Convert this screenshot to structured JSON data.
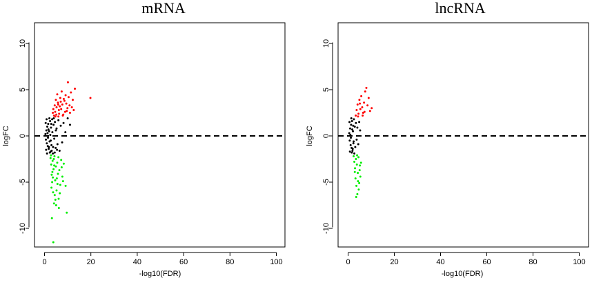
{
  "chart_data": [
    {
      "type": "scatter",
      "title": "mRNA",
      "xlabel": "-log10(FDR)",
      "ylabel": "logFC",
      "xlim": [
        0,
        100
      ],
      "ylim": [
        -12,
        12
      ],
      "xticks": [
        "0",
        "20",
        "40",
        "60",
        "80",
        "100"
      ],
      "yticks": [
        "-10",
        "-5",
        "0",
        "5",
        "10"
      ],
      "reference_line": {
        "y": 0,
        "style": "dashed"
      },
      "grid": false,
      "series": [
        {
          "color": "#ff0000",
          "points": [
            [
              4.1,
              2.2
            ],
            [
              4.6,
              2.6
            ],
            [
              5.2,
              3.1
            ],
            [
              5.8,
              3.6
            ],
            [
              6.3,
              2.4
            ],
            [
              6.8,
              4.1
            ],
            [
              7.2,
              2.9
            ],
            [
              7.7,
              3.4
            ],
            [
              8.1,
              2.3
            ],
            [
              8.6,
              3.8
            ],
            [
              9.1,
              4.4
            ],
            [
              9.6,
              2.7
            ],
            [
              10.1,
              5.8
            ],
            [
              10.8,
              3.3
            ],
            [
              11.4,
              4.7
            ],
            [
              12.2,
              3.9
            ],
            [
              13.1,
              5.1
            ],
            [
              4.4,
              3.3
            ],
            [
              5.5,
              4.5
            ],
            [
              6.0,
              2.1
            ],
            [
              7.4,
              4.8
            ],
            [
              8.9,
              2.6
            ],
            [
              9.9,
              3.0
            ],
            [
              11.0,
              2.5
            ],
            [
              3.8,
              2.9
            ],
            [
              4.9,
              3.9
            ],
            [
              6.6,
              3.2
            ],
            [
              7.9,
              2.2
            ],
            [
              12.6,
              2.8
            ],
            [
              19.8,
              4.1
            ],
            [
              5.1,
              2.3
            ],
            [
              6.2,
              2.8
            ],
            [
              7.0,
              3.7
            ],
            [
              8.3,
              4.0
            ],
            [
              9.4,
              3.5
            ],
            [
              10.4,
              4.2
            ],
            [
              3.6,
              2.5
            ],
            [
              4.7,
              2.1
            ],
            [
              5.9,
              3.4
            ],
            [
              11.8,
              3.1
            ]
          ]
        },
        {
          "color": "#000000",
          "points": [
            [
              0.4,
              0.2
            ],
            [
              0.6,
              -0.4
            ],
            [
              0.8,
              0.6
            ],
            [
              1.0,
              -0.8
            ],
            [
              1.2,
              1.0
            ],
            [
              1.4,
              -1.1
            ],
            [
              1.6,
              1.3
            ],
            [
              1.8,
              -1.4
            ],
            [
              2.0,
              0.5
            ],
            [
              2.2,
              -0.6
            ],
            [
              2.4,
              1.6
            ],
            [
              2.6,
              -1.7
            ],
            [
              2.8,
              0.9
            ],
            [
              3.0,
              -1.0
            ],
            [
              3.3,
              1.8
            ],
            [
              3.6,
              -1.9
            ],
            [
              3.9,
              1.2
            ],
            [
              4.2,
              -0.3
            ],
            [
              4.5,
              1.5
            ],
            [
              4.8,
              -1.3
            ],
            [
              5.2,
              0.8
            ],
            [
              5.6,
              -0.9
            ],
            [
              6.0,
              1.7
            ],
            [
              6.5,
              -1.6
            ],
            [
              7.0,
              1.1
            ],
            [
              7.6,
              -0.7
            ],
            [
              8.2,
              1.4
            ],
            [
              9.0,
              0.4
            ],
            [
              10.0,
              1.9
            ],
            [
              11.0,
              1.2
            ],
            [
              0.5,
              1.4
            ],
            [
              0.7,
              -1.5
            ],
            [
              0.9,
              1.8
            ],
            [
              1.1,
              -1.9
            ],
            [
              1.3,
              0.3
            ],
            [
              1.5,
              -0.2
            ],
            [
              1.7,
              0.7
            ],
            [
              1.9,
              -1.2
            ],
            [
              2.1,
              1.9
            ],
            [
              2.3,
              -1.8
            ],
            [
              2.5,
              0.1
            ],
            [
              2.7,
              -0.5
            ],
            [
              2.9,
              1.3
            ],
            [
              3.1,
              -1.6
            ],
            [
              3.4,
              0.4
            ],
            [
              3.7,
              -1.2
            ],
            [
              4.0,
              1.9
            ],
            [
              4.4,
              -1.8
            ],
            [
              4.9,
              0.6
            ],
            [
              5.4,
              -1.5
            ]
          ]
        },
        {
          "color": "#00ee00",
          "points": [
            [
              2.6,
              -2.4
            ],
            [
              2.9,
              -3.1
            ],
            [
              3.1,
              -4.2
            ],
            [
              3.3,
              -5.0
            ],
            [
              3.5,
              -2.7
            ],
            [
              3.7,
              -6.1
            ],
            [
              3.9,
              -3.6
            ],
            [
              4.1,
              -7.3
            ],
            [
              4.3,
              -2.2
            ],
            [
              4.6,
              -4.8
            ],
            [
              4.9,
              -3.3
            ],
            [
              5.2,
              -5.9
            ],
            [
              5.5,
              -2.9
            ],
            [
              5.8,
              -4.1
            ],
            [
              6.1,
              -6.8
            ],
            [
              6.4,
              -3.7
            ],
            [
              6.8,
              -5.3
            ],
            [
              7.2,
              -2.6
            ],
            [
              7.7,
              -4.4
            ],
            [
              8.3,
              -3.0
            ],
            [
              9.1,
              -5.4
            ],
            [
              9.6,
              -8.3
            ],
            [
              3.2,
              -8.9
            ],
            [
              3.8,
              -11.5
            ],
            [
              4.4,
              -6.4
            ],
            [
              5.0,
              -7.5
            ],
            [
              2.8,
              -2.1
            ],
            [
              3.4,
              -3.9
            ],
            [
              4.0,
              -2.5
            ],
            [
              4.7,
              -6.9
            ],
            [
              5.3,
              -4.6
            ],
            [
              6.0,
              -2.3
            ],
            [
              6.6,
              -6.2
            ],
            [
              7.4,
              -3.4
            ],
            [
              8.0,
              -4.9
            ],
            [
              3.0,
              -5.6
            ],
            [
              3.6,
              -4.5
            ],
            [
              4.2,
              -3.2
            ],
            [
              5.6,
              -5.2
            ],
            [
              6.2,
              -7.8
            ]
          ]
        }
      ]
    },
    {
      "type": "scatter",
      "title": "lncRNA",
      "xlabel": "-log10(FDR)",
      "ylabel": "logFC",
      "xlim": [
        0,
        100
      ],
      "ylim": [
        -12,
        12
      ],
      "xticks": [
        "0",
        "20",
        "40",
        "60",
        "80",
        "100"
      ],
      "yticks": [
        "-10",
        "-5",
        "0",
        "5",
        "10"
      ],
      "reference_line": {
        "y": 0,
        "style": "dashed"
      },
      "grid": false,
      "series": [
        {
          "color": "#ff0000",
          "points": [
            [
              3.3,
              2.2
            ],
            [
              3.7,
              2.8
            ],
            [
              4.1,
              3.4
            ],
            [
              4.5,
              2.4
            ],
            [
              4.9,
              3.9
            ],
            [
              5.3,
              2.9
            ],
            [
              5.7,
              4.3
            ],
            [
              6.1,
              3.1
            ],
            [
              6.5,
              2.5
            ],
            [
              6.9,
              3.6
            ],
            [
              7.4,
              4.8
            ],
            [
              7.9,
              5.2
            ],
            [
              8.4,
              3.3
            ],
            [
              8.9,
              4.1
            ],
            [
              9.5,
              2.7
            ],
            [
              10.2,
              3.0
            ],
            [
              4.3,
              2.1
            ],
            [
              5.1,
              3.5
            ],
            [
              6.3,
              2.2
            ],
            [
              7.1,
              2.6
            ]
          ]
        },
        {
          "color": "#000000",
          "points": [
            [
              0.5,
              0.3
            ],
            [
              0.7,
              -0.5
            ],
            [
              0.9,
              0.8
            ],
            [
              1.1,
              -1.0
            ],
            [
              1.3,
              1.2
            ],
            [
              1.5,
              -1.3
            ],
            [
              1.7,
              1.6
            ],
            [
              1.9,
              -1.6
            ],
            [
              2.1,
              0.5
            ],
            [
              2.3,
              -0.8
            ],
            [
              2.5,
              1.8
            ],
            [
              2.7,
              -1.9
            ],
            [
              2.9,
              1.0
            ],
            [
              3.1,
              -1.2
            ],
            [
              3.4,
              1.4
            ],
            [
              3.7,
              -0.4
            ],
            [
              4.0,
              0.9
            ],
            [
              4.4,
              -0.9
            ],
            [
              4.8,
              1.5
            ],
            [
              5.2,
              0.6
            ],
            [
              0.6,
              1.5
            ],
            [
              0.8,
              -1.7
            ],
            [
              1.0,
              0.1
            ],
            [
              1.2,
              -0.2
            ],
            [
              1.4,
              1.9
            ],
            [
              1.6,
              -1.8
            ],
            [
              1.8,
              0.7
            ],
            [
              2.0,
              -1.4
            ],
            [
              2.2,
              1.1
            ],
            [
              2.4,
              -0.6
            ]
          ]
        },
        {
          "color": "#00ee00",
          "points": [
            [
              2.4,
              -2.2
            ],
            [
              2.7,
              -2.8
            ],
            [
              3.0,
              -3.5
            ],
            [
              3.2,
              -4.6
            ],
            [
              3.4,
              -2.5
            ],
            [
              3.6,
              -5.4
            ],
            [
              3.8,
              -3.1
            ],
            [
              4.0,
              -6.3
            ],
            [
              4.2,
              -4.0
            ],
            [
              4.5,
              -2.3
            ],
            [
              4.8,
              -5.1
            ],
            [
              5.0,
              -3.7
            ],
            [
              5.3,
              -4.4
            ],
            [
              5.6,
              -2.9
            ],
            [
              3.5,
              -6.6
            ],
            [
              4.6,
              -5.8
            ],
            [
              2.9,
              -3.9
            ],
            [
              3.9,
              -2.1
            ],
            [
              4.3,
              -4.9
            ],
            [
              5.1,
              -3.2
            ]
          ]
        }
      ]
    }
  ]
}
